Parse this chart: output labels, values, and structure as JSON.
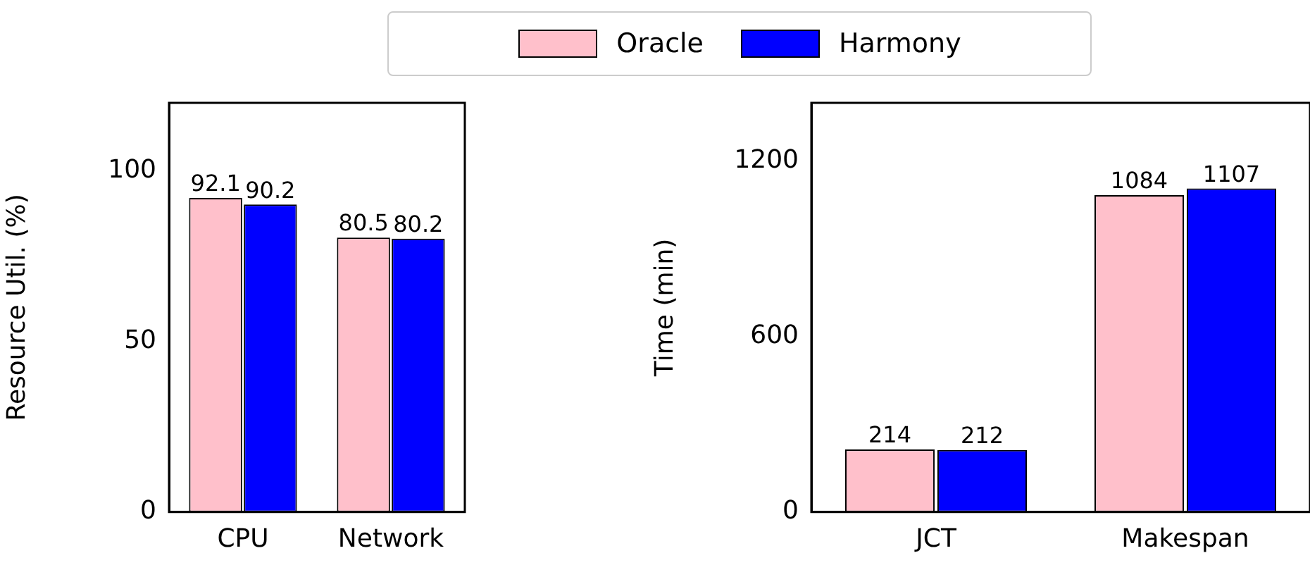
{
  "chart_data": [
    {
      "type": "bar",
      "ylabel": "Resource Util. (%)",
      "categories": [
        "CPU",
        "Network"
      ],
      "series": [
        {
          "name": "Oracle",
          "color": "#ffc0cb",
          "values": [
            92.1,
            80.5
          ]
        },
        {
          "name": "Harmony",
          "color": "#0000ff",
          "values": [
            90.2,
            80.2
          ]
        }
      ],
      "ylim": [
        0,
        120
      ],
      "yticks": [
        0,
        50,
        100
      ],
      "grid": false,
      "legend": "top",
      "data_labels": true
    },
    {
      "type": "bar",
      "ylabel": "Time (min)",
      "categories": [
        "JCT",
        "Makespan"
      ],
      "series": [
        {
          "color": "#ffc0cb",
          "values": [
            214,
            1084
          ]
        },
        {
          "color": "#0000ff",
          "values": [
            212,
            1107
          ]
        }
      ],
      "ylim": [
        0,
        1400
      ],
      "yticks": [
        0,
        600,
        1200
      ],
      "grid": false,
      "data_labels": true
    }
  ]
}
